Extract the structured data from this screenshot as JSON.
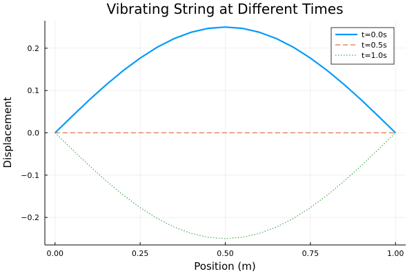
{
  "chart_data": {
    "type": "line",
    "title": "Vibrating String at Different Times",
    "xlabel": "Position (m)",
    "ylabel": "Displacement",
    "xlim": [
      -0.03,
      1.03
    ],
    "ylim": [
      -0.265,
      0.265
    ],
    "xticks": [
      0.0,
      0.25,
      0.5,
      0.75,
      1.0
    ],
    "xtick_labels": [
      "0.00",
      "0.25",
      "0.50",
      "0.75",
      "1.00"
    ],
    "yticks": [
      -0.2,
      -0.1,
      0.0,
      0.1,
      0.2
    ],
    "ytick_labels": [
      "−0.2",
      "−0.1",
      "0.0",
      "0.1",
      "0.2"
    ],
    "grid": true,
    "legend_position": "top-right",
    "x": [
      0.0,
      0.05,
      0.1,
      0.15,
      0.2,
      0.25,
      0.3,
      0.35,
      0.4,
      0.45,
      0.5,
      0.55,
      0.6,
      0.65,
      0.7,
      0.75,
      0.8,
      0.85,
      0.9,
      0.95,
      1.0
    ],
    "series": [
      {
        "name": "t=0.0s",
        "color": "#009af9",
        "style": "solid",
        "values": [
          0.0,
          0.039,
          0.0773,
          0.1135,
          0.1469,
          0.1768,
          0.2023,
          0.2228,
          0.2378,
          0.2469,
          0.25,
          0.2469,
          0.2378,
          0.2228,
          0.2023,
          0.1768,
          0.1469,
          0.1135,
          0.0773,
          0.039,
          0.0
        ]
      },
      {
        "name": "t=0.5s",
        "color": "#e26f46",
        "style": "dashed",
        "values": [
          0.0,
          0.0,
          0.0,
          0.0,
          0.0,
          0.0,
          0.0,
          0.0,
          0.0,
          0.0,
          0.0,
          0.0,
          0.0,
          0.0,
          0.0,
          0.0,
          0.0,
          0.0,
          0.0,
          0.0,
          0.0
        ]
      },
      {
        "name": "t=1.0s",
        "color": "#3da44d",
        "style": "dotted",
        "values": [
          0.0,
          -0.039,
          -0.0773,
          -0.1135,
          -0.1469,
          -0.1768,
          -0.2023,
          -0.2228,
          -0.2378,
          -0.2469,
          -0.25,
          -0.2469,
          -0.2378,
          -0.2228,
          -0.2023,
          -0.1768,
          -0.1469,
          -0.1135,
          -0.0773,
          -0.039,
          0.0
        ]
      }
    ]
  }
}
